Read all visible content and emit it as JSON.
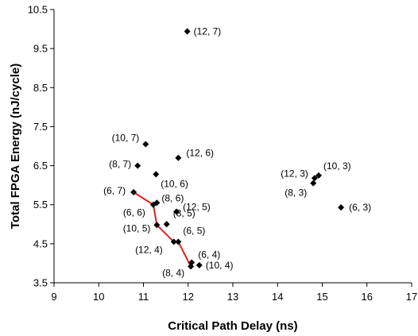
{
  "chart_data": {
    "type": "scatter",
    "xlabel": "Critical Path Delay (ns)",
    "ylabel": "Total FPGA Energy (nJ/cycle)",
    "xlim": [
      9,
      17
    ],
    "ylim": [
      3.5,
      10.5
    ],
    "xticks": [
      "9",
      "10",
      "11",
      "12",
      "13",
      "14",
      "15",
      "16",
      "17"
    ],
    "yticks": [
      "3.5",
      "4.5",
      "5.5",
      "6.5",
      "7.5",
      "8.5",
      "9.5",
      "10.5"
    ],
    "grid": false,
    "legend": "none",
    "marker_color": "#000000",
    "line_color": "#e02020",
    "points": [
      {
        "x": 11.98,
        "y": 9.94,
        "label": "(12, 7)"
      },
      {
        "x": 11.05,
        "y": 7.05,
        "label": "(10, 7)"
      },
      {
        "x": 11.78,
        "y": 6.7,
        "label": "(12, 6)"
      },
      {
        "x": 10.87,
        "y": 6.5,
        "label": "(8, 7)"
      },
      {
        "x": 11.28,
        "y": 6.28,
        "label": "(10, 6)"
      },
      {
        "x": 10.78,
        "y": 5.82,
        "label": "(6, 7)"
      },
      {
        "x": 11.3,
        "y": 5.55,
        "label": "(8, 6)"
      },
      {
        "x": 11.22,
        "y": 5.5,
        "label": "(6, 6)"
      },
      {
        "x": 11.74,
        "y": 5.32,
        "label": "(12, 5)"
      },
      {
        "x": 11.52,
        "y": 5.0,
        "label": "(8, 5)"
      },
      {
        "x": 11.3,
        "y": 4.98,
        "label": "(10, 5)"
      },
      {
        "x": 11.78,
        "y": 4.55,
        "label": "(6, 5)"
      },
      {
        "x": 11.68,
        "y": 4.55,
        "label": "(12, 4)"
      },
      {
        "x": 12.08,
        "y": 4.02,
        "label": "(6, 4)"
      },
      {
        "x": 12.25,
        "y": 3.95,
        "label": "(10, 4)"
      },
      {
        "x": 12.06,
        "y": 3.92,
        "label": "(8, 4)"
      },
      {
        "x": 14.92,
        "y": 6.25,
        "label": "(10, 3)"
      },
      {
        "x": 14.83,
        "y": 6.18,
        "label": "(12, 3)"
      },
      {
        "x": 14.8,
        "y": 6.05,
        "label": "(8, 3)"
      },
      {
        "x": 15.42,
        "y": 5.43,
        "label": "(6, 3)"
      }
    ],
    "pareto_line": [
      {
        "x": 10.78,
        "y": 5.82
      },
      {
        "x": 11.22,
        "y": 5.5
      },
      {
        "x": 11.3,
        "y": 4.98
      },
      {
        "x": 11.68,
        "y": 4.55
      },
      {
        "x": 11.78,
        "y": 4.55
      },
      {
        "x": 12.06,
        "y": 3.92
      }
    ]
  }
}
